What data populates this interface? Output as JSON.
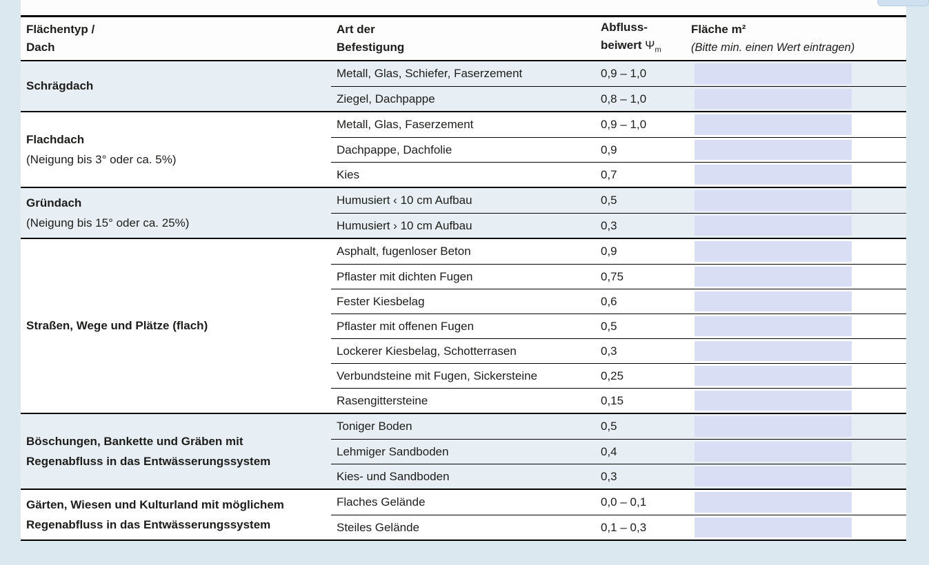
{
  "colors": {
    "page_background": "#dce8ef",
    "shaded_group_background": "#e8eff4",
    "input_field_background": "#d9def5",
    "table_border": "#000000",
    "corner_widget": "#cfe1f0"
  },
  "table": {
    "header": {
      "col1_line1": "Flächentyp /",
      "col1_line2": "Dach",
      "col2_line1": "Art der",
      "col2_line2": "Befestigung",
      "col3_line1": "Abfluss-",
      "col3_line2_prefix": "beiwert ",
      "col3_symbol": "Ψ",
      "col3_subscript": "m",
      "col4_line1": "Fläche m²",
      "col4_line2": "(Bitte min. einen Wert eintragen)"
    },
    "groups": [
      {
        "label": "Schrägdach",
        "sublabel": "",
        "sublabel_bold": false,
        "shaded": true,
        "rows": [
          {
            "surface": "Metall, Glas, Schiefer, Faserzement",
            "coefficient": "0,9 – 1,0",
            "input_value": ""
          },
          {
            "surface": "Ziegel, Dachpappe",
            "coefficient": "0,8 – 1,0",
            "input_value": ""
          }
        ]
      },
      {
        "label": "Flachdach",
        "sublabel": "(Neigung bis 3° oder ca. 5%)",
        "sublabel_bold": false,
        "shaded": false,
        "rows": [
          {
            "surface": "Metall, Glas, Faserzement",
            "coefficient": "0,9 – 1,0",
            "input_value": ""
          },
          {
            "surface": "Dachpappe, Dachfolie",
            "coefficient": "0,9",
            "input_value": ""
          },
          {
            "surface": "Kies",
            "coefficient": "0,7",
            "input_value": ""
          }
        ]
      },
      {
        "label": "Gründach",
        "sublabel": "(Neigung bis 15° oder ca. 25%)",
        "sublabel_bold": false,
        "shaded": true,
        "rows": [
          {
            "surface": "Humusiert ‹ 10 cm Aufbau",
            "coefficient": "0,5",
            "input_value": ""
          },
          {
            "surface": "Humusiert › 10 cm Aufbau",
            "coefficient": "0,3",
            "input_value": ""
          }
        ]
      },
      {
        "label": "Straßen, Wege und Plätze (flach)",
        "sublabel": "",
        "sublabel_bold": false,
        "shaded": false,
        "rows": [
          {
            "surface": "Asphalt, fugenloser Beton",
            "coefficient": "0,9",
            "input_value": ""
          },
          {
            "surface": "Pflaster mit dichten Fugen",
            "coefficient": "0,75",
            "input_value": ""
          },
          {
            "surface": "Fester Kiesbelag",
            "coefficient": "0,6",
            "input_value": ""
          },
          {
            "surface": "Pflaster mit offenen Fugen",
            "coefficient": "0,5",
            "input_value": ""
          },
          {
            "surface": "Lockerer Kiesbelag, Schotterrasen",
            "coefficient": "0,3",
            "input_value": ""
          },
          {
            "surface": "Verbundsteine mit Fugen, Sickersteine",
            "coefficient": "0,25",
            "input_value": ""
          },
          {
            "surface": "Rasengittersteine",
            "coefficient": "0,15",
            "input_value": ""
          }
        ]
      },
      {
        "label": "Böschungen, Bankette und Gräben mit",
        "sublabel": "Regenabfluss in das Entwässerungssystem",
        "sublabel_bold": true,
        "shaded": true,
        "rows": [
          {
            "surface": "Toniger Boden",
            "coefficient": "0,5",
            "input_value": ""
          },
          {
            "surface": "Lehmiger Sandboden",
            "coefficient": "0,4",
            "input_value": ""
          },
          {
            "surface": "Kies- und Sandboden",
            "coefficient": "0,3",
            "input_value": ""
          }
        ]
      },
      {
        "label": "Gärten, Wiesen und Kulturland mit möglichem",
        "sublabel": "Regenabfluss in das Entwässerungssystem",
        "sublabel_bold": true,
        "shaded": false,
        "rows": [
          {
            "surface": "Flaches Gelände",
            "coefficient": "0,0 – 0,1",
            "input_value": ""
          },
          {
            "surface": "Steiles Gelände",
            "coefficient": "0,1 – 0,3",
            "input_value": ""
          }
        ]
      }
    ]
  }
}
